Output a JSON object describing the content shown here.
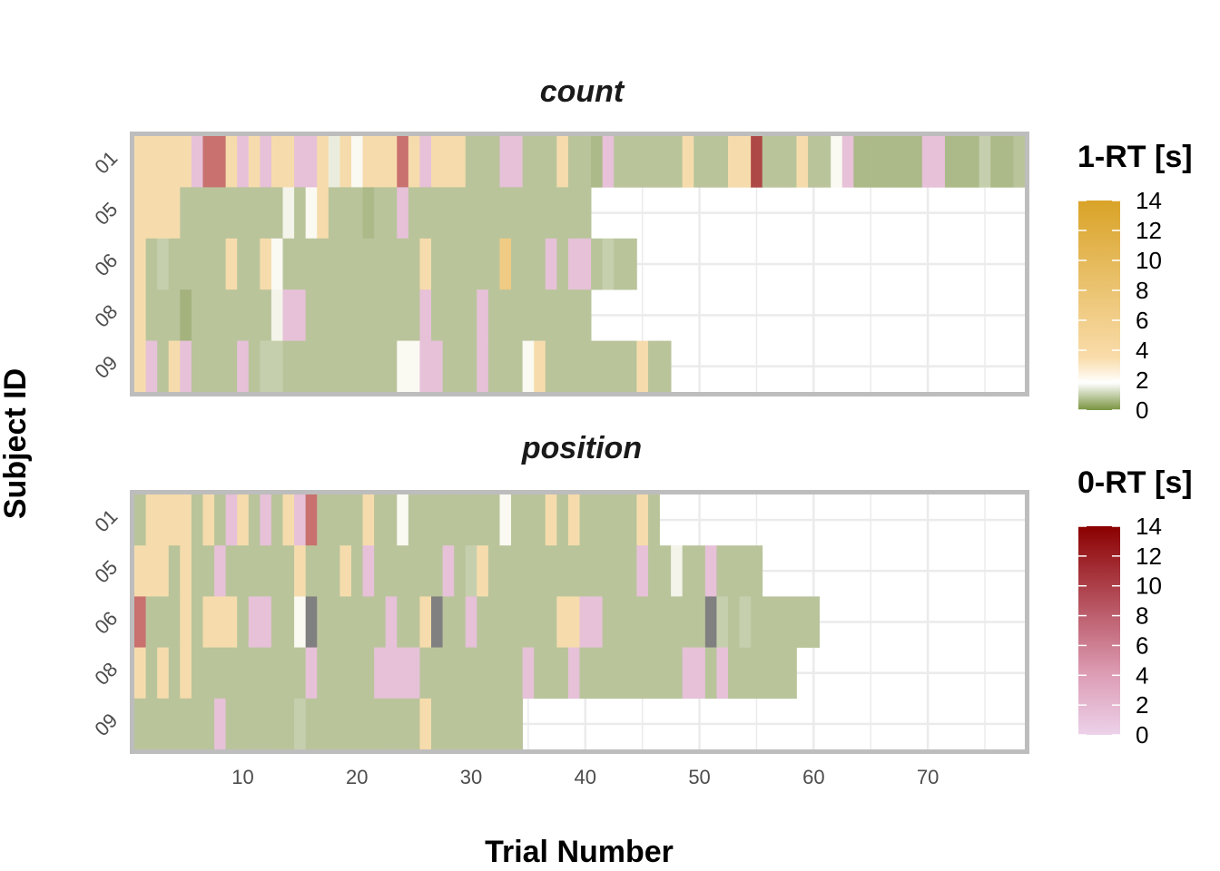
{
  "chart_data": {
    "type": "heatmap",
    "xlabel": "Trial Number",
    "ylabel": "Subject ID",
    "xlim": [
      0.5,
      78.5
    ],
    "x_ticks": [
      10,
      20,
      30,
      40,
      50,
      60,
      70
    ],
    "subjects": [
      "01",
      "05",
      "06",
      "08",
      "09"
    ],
    "panels": [
      {
        "title": "count",
        "rows": [
          {
            "subject": "01",
            "values": [
              -3.5,
              -3.5,
              -3.5,
              -3.5,
              -3.5,
              -2,
              -9,
              -9,
              -3.5,
              -2,
              -3.5,
              -2,
              -3.5,
              -3.5,
              -2,
              -2,
              -3.5,
              1.8,
              -3.5,
              2.3,
              -3.5,
              -3.5,
              -3.5,
              -9,
              -3.5,
              -2,
              -3.5,
              -3.5,
              -3.5,
              1,
              1,
              1,
              -2,
              -2,
              1,
              1,
              1,
              -3.5,
              1,
              1,
              0.5,
              -2,
              1,
              1,
              1,
              1,
              1,
              1,
              -3.5,
              1,
              1,
              1,
              -3.5,
              -3.5,
              -11,
              1,
              1,
              1,
              -3.5,
              1,
              1,
              2.3,
              -2,
              0.5,
              0.5,
              0.5,
              0.5,
              0.5,
              0.5,
              -2,
              -2,
              0.5,
              0.5,
              0.5,
              1.5,
              0.5,
              0.5,
              1
            ]
          },
          {
            "subject": "05",
            "values": [
              -3,
              -3.5,
              -3.5,
              -3,
              1,
              1,
              1,
              1,
              1,
              1,
              1,
              1,
              1,
              2.1,
              1,
              2.3,
              -3.5,
              1,
              1,
              1,
              0.5,
              1,
              1,
              -2,
              1,
              1,
              1,
              1,
              1,
              1,
              1,
              1,
              1,
              1,
              1,
              1,
              1,
              1,
              1,
              1
            ]
          },
          {
            "subject": "06",
            "values": [
              -3.5,
              1,
              1.5,
              1,
              1,
              1,
              1,
              1,
              -3.5,
              1,
              1,
              -3.5,
              2.3,
              1,
              1,
              1,
              1,
              1,
              1,
              1,
              1,
              1,
              1,
              1,
              1,
              -3.5,
              1,
              1,
              1,
              1,
              1,
              1,
              -5,
              1,
              1,
              1,
              -2,
              1,
              -2.5,
              -2,
              1,
              1.5,
              1,
              1
            ]
          },
          {
            "subject": "08",
            "values": [
              -3.5,
              1,
              1,
              1,
              0.2,
              1,
              1,
              1,
              1,
              1,
              1,
              1,
              2.1,
              -2,
              -2,
              1,
              1,
              1,
              1,
              1,
              1,
              1,
              1,
              1,
              1,
              -2,
              1,
              1,
              1,
              1,
              -2,
              1,
              1,
              1,
              1,
              1,
              1,
              1,
              1,
              1
            ]
          },
          {
            "subject": "09",
            "values": [
              -3.5,
              -1.5,
              1,
              -3.5,
              -1.5,
              1,
              1,
              1,
              1,
              -2,
              1,
              1.5,
              1.5,
              1,
              1,
              1,
              1,
              1,
              1,
              1,
              1,
              1,
              1,
              2.3,
              2.3,
              -1.5,
              -1.5,
              1,
              1,
              1,
              -2,
              1,
              1,
              1,
              2.3,
              -3.5,
              1,
              1,
              1,
              1,
              1,
              1,
              1,
              1,
              -3.5,
              1,
              1
            ]
          }
        ]
      },
      {
        "title": "position",
        "rows": [
          {
            "subject": "01",
            "values": [
              1,
              -3.5,
              -3.5,
              -3.5,
              -3.5,
              1,
              -3.5,
              1,
              -2,
              -3.5,
              1,
              -2,
              1,
              -3.5,
              -2,
              -9,
              1,
              1,
              1,
              1,
              -3.5,
              1,
              1,
              2.3,
              1,
              1,
              1,
              1,
              1,
              1,
              1,
              1,
              2.3,
              1,
              1,
              1,
              -3,
              1,
              -3,
              1,
              1,
              1,
              1,
              1,
              -3.5,
              1
            ]
          },
          {
            "subject": "05",
            "values": [
              -3.5,
              -3.5,
              -3.5,
              1,
              -3.5,
              1,
              1,
              -2,
              1,
              1,
              1,
              1,
              1,
              1,
              -3.5,
              1,
              1,
              1,
              -3.5,
              1,
              -2,
              1,
              1,
              1,
              1,
              1,
              1,
              -2,
              1,
              1.5,
              -3.5,
              1,
              1,
              1,
              1,
              1,
              1,
              1,
              1,
              1,
              1,
              1,
              1,
              1,
              -2,
              1,
              1,
              2.1,
              1,
              1,
              -2,
              1,
              1,
              1,
              1
            ]
          },
          {
            "subject": "06",
            "values": [
              -9,
              1,
              1,
              1,
              -3.5,
              1,
              -3.5,
              -3.5,
              -3.5,
              1,
              -2,
              -2,
              1,
              1,
              2.3,
              0,
              1,
              1,
              1,
              1,
              1,
              1,
              -2,
              1,
              1,
              -3.5,
              0,
              1,
              1,
              -2,
              1,
              1,
              1,
              1,
              1,
              1,
              1,
              -3.5,
              -3.5,
              -2,
              -2,
              1,
              1,
              1,
              1,
              1,
              1,
              1,
              1,
              1,
              0,
              1.5,
              1,
              1.5,
              1,
              1,
              1,
              1,
              1,
              1
            ]
          },
          {
            "subject": "08",
            "values": [
              -3,
              1,
              -3.5,
              1,
              -3.5,
              1,
              1,
              1,
              1,
              1,
              1,
              1,
              1,
              1,
              1,
              -2,
              1,
              1,
              1,
              1,
              1,
              -2,
              -2,
              -2,
              -2,
              1,
              1,
              1,
              1,
              1,
              1,
              1,
              1,
              1,
              -2,
              1,
              1,
              1,
              -2,
              1,
              1,
              1,
              1,
              1,
              1,
              1,
              1,
              1,
              -2,
              -2,
              1,
              -2,
              1,
              1,
              1,
              1,
              1,
              1
            ]
          },
          {
            "subject": "09",
            "values": [
              1,
              1,
              1,
              1,
              1,
              1,
              1,
              -2,
              1,
              1,
              1,
              1,
              1,
              1,
              1.5,
              1,
              1,
              1,
              1,
              1,
              1,
              1,
              1,
              1,
              1,
              -3.5,
              1,
              1,
              1,
              1,
              1,
              1,
              1,
              1
            ]
          }
        ]
      }
    ],
    "legends": [
      {
        "title": "1-RT [s]",
        "ticks": [
          "14",
          "12",
          "10",
          "8",
          "6",
          "4",
          "2",
          "0"
        ],
        "colors": {
          "low": "#7a9440",
          "mid": "#ffffff",
          "high": "#d9a327"
        }
      },
      {
        "title": "0-RT [s]",
        "ticks": [
          "14",
          "12",
          "10",
          "8",
          "6",
          "4",
          "2",
          "0"
        ],
        "colors": {
          "low": "#ecd2ea",
          "high": "#8b0000"
        }
      }
    ],
    "na_color": "#808080",
    "panel_border_color": "#bdbdbd",
    "grid": true
  }
}
